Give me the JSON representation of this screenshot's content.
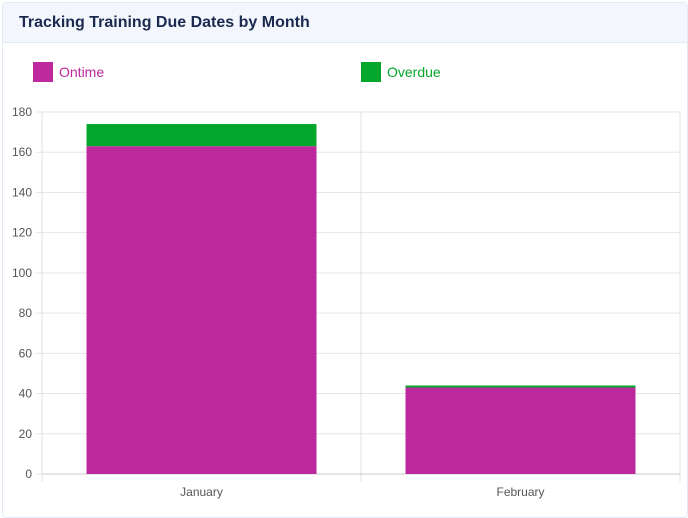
{
  "title": "Tracking Training Due Dates by Month",
  "chart_data": {
    "type": "bar",
    "stacked": true,
    "categories": [
      "January",
      "February"
    ],
    "series": [
      {
        "name": "Ontime",
        "values": [
          163,
          43
        ],
        "color": "#bd289c"
      },
      {
        "name": "Overdue",
        "values": [
          11,
          1
        ],
        "color": "#04a72b"
      }
    ],
    "ylim": [
      0,
      180
    ],
    "yticks": [
      0,
      20,
      40,
      60,
      80,
      100,
      120,
      140,
      160,
      180
    ],
    "grid": true,
    "legend": "top"
  }
}
